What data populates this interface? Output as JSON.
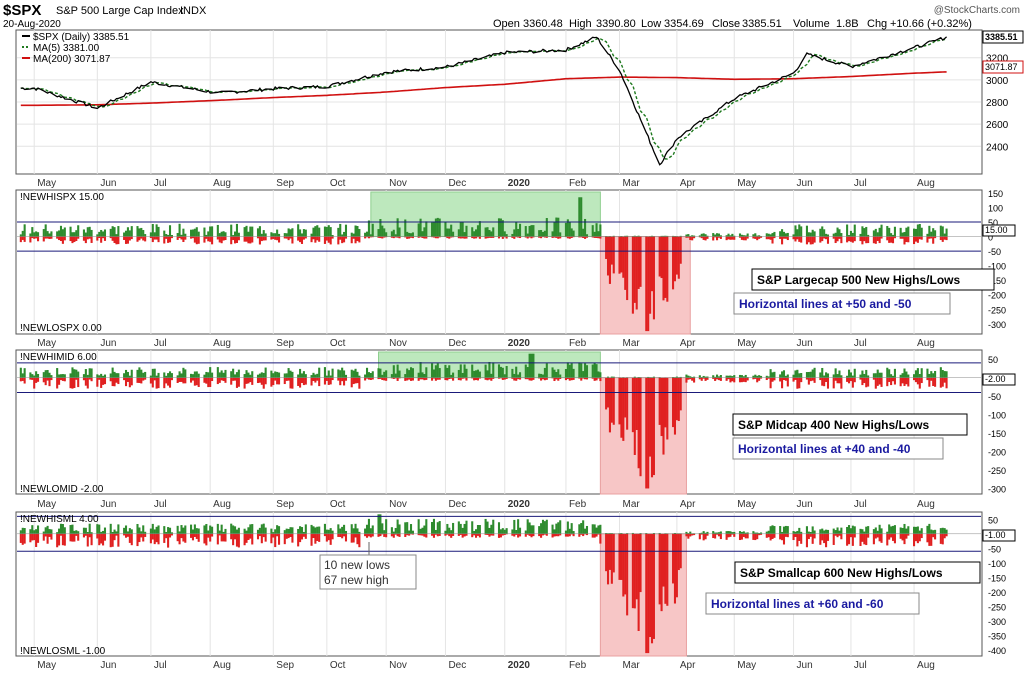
{
  "header": {
    "symbol": "$SPX",
    "name": "S&P 500 Large Cap Index",
    "exchange": "INDX",
    "date": "20-Aug-2020",
    "open_label": "Open",
    "open": "3360.48",
    "high_label": "High",
    "high": "3390.80",
    "low_label": "Low",
    "low": "3354.69",
    "close_label": "Close",
    "close": "3385.51",
    "volume_label": "Volume",
    "volume": "1.8B",
    "chg_label": "Chg",
    "chg": "+10.66 (+0.32%)",
    "watermark": "@StockCharts.com"
  },
  "colors": {
    "price": "#000000",
    "ma5": "#1f7a1f",
    "ma200": "#d01010",
    "up_bar": "#2e8b2e",
    "down_bar": "#e02020",
    "green_box": "#bde8bd",
    "red_box": "#f7c6c6",
    "hline": "#1a1a7a",
    "annot_text": "#1a1aa0"
  },
  "chart_data": [
    {
      "type": "line",
      "panel": "price",
      "legend": [
        {
          "name": "$SPX (Daily)",
          "value": "3385.51"
        },
        {
          "name": "MA(5)",
          "value": "3381.00"
        },
        {
          "name": "MA(200)",
          "value": "3071.87"
        }
      ],
      "last_labels": [
        "3385.51",
        "3071.87"
      ],
      "yticks": [
        2400,
        2600,
        2800,
        3000,
        3200
      ],
      "ylim": [
        2150,
        3450
      ],
      "x_dates": [
        "2019-05-01",
        "2019-06-03",
        "2019-07-01",
        "2019-08-05",
        "2019-09-03",
        "2019-10-01",
        "2019-11-01",
        "2019-12-02",
        "2020-01-02",
        "2020-02-03",
        "2020-03-02",
        "2020-04-01",
        "2020-05-01",
        "2020-06-01",
        "2020-07-01",
        "2020-08-03",
        "2020-08-20"
      ],
      "series": [
        {
          "name": "$SPX (Daily)",
          "values": [
            2925,
            2745,
            2980,
            2880,
            2920,
            2940,
            3070,
            3115,
            3245,
            3270,
            3090,
            2470,
            2830,
            3060,
            3120,
            3290,
            3385
          ]
        },
        {
          "name": "MA(200)",
          "values": [
            2770,
            2775,
            2790,
            2815,
            2840,
            2860,
            2890,
            2930,
            2960,
            3010,
            3025,
            3020,
            3005,
            3010,
            3030,
            3060,
            3072
          ]
        }
      ],
      "key_points": {
        "feb_peak": 3386,
        "mar_low": 2237,
        "jun_peak": 3230
      },
      "xticklabels": [
        "May",
        "Jun",
        "Jul",
        "Aug",
        "Sep",
        "Oct",
        "Nov",
        "Dec",
        "2020",
        "Feb",
        "Mar",
        "Apr",
        "May",
        "Jun",
        "Jul",
        "Aug"
      ]
    },
    {
      "type": "bar",
      "panel": "largecap",
      "highs_label": "!NEWHISPX 15.00",
      "lows_label": "!NEWLOSPX 0.00",
      "last_value": "15.00",
      "yticks": [
        150,
        100,
        50,
        0,
        -50,
        -100,
        -150,
        -200,
        -250,
        -300
      ],
      "ylim": [
        -335,
        160
      ],
      "hlines": [
        50,
        -50
      ],
      "highs_summary": {
        "typical_range": [
          5,
          70
        ],
        "max": 135,
        "max_date": "2020-02-10"
      },
      "lows_summary": {
        "typical_range": [
          -5,
          -50
        ],
        "min": -325,
        "min_date": "2020-03-16"
      },
      "title": "S&P Largecap 500 New Highs/Lows",
      "note": "Horizontal lines at +50 and -50"
    },
    {
      "type": "bar",
      "panel": "midcap",
      "highs_label": "!NEWHIMID 6.00",
      "lows_label": "!NEWLOMID -2.00",
      "last_value": "-2.00",
      "yticks": [
        50,
        0,
        -50,
        -100,
        -150,
        -200,
        -250,
        -300
      ],
      "ylim": [
        -315,
        75
      ],
      "hlines": [
        40,
        -40
      ],
      "highs_summary": {
        "typical_range": [
          5,
          45
        ],
        "max": 65,
        "max_date": "2020-01-16"
      },
      "lows_summary": {
        "typical_range": [
          -5,
          -55
        ],
        "min": -300,
        "min_date": "2020-03-16"
      },
      "title": "S&P Midcap 400  New Highs/Lows",
      "note": "Horizontal lines at +40 and -40"
    },
    {
      "type": "bar",
      "panel": "smallcap",
      "highs_label": "!NEWHISML 4.00",
      "lows_label": "!NEWLOSML -1.00",
      "last_value": "-1.00",
      "yticks": [
        50,
        0,
        -50,
        -100,
        -150,
        -200,
        -250,
        -300,
        -350,
        -400
      ],
      "ylim": [
        -420,
        75
      ],
      "hlines": [
        60,
        -60
      ],
      "highs_summary": {
        "typical_range": [
          5,
          55
        ],
        "max": 67,
        "max_date": "2019-10-28"
      },
      "lows_summary": {
        "typical_range": [
          -5,
          -90
        ],
        "min": -410,
        "min_date": "2020-03-16"
      },
      "title": "S&P Smallcap 600  New Highs/Lows",
      "note": "Horizontal lines at +60 and -60",
      "callout": [
        "10 new lows",
        "67 new high"
      ]
    }
  ]
}
